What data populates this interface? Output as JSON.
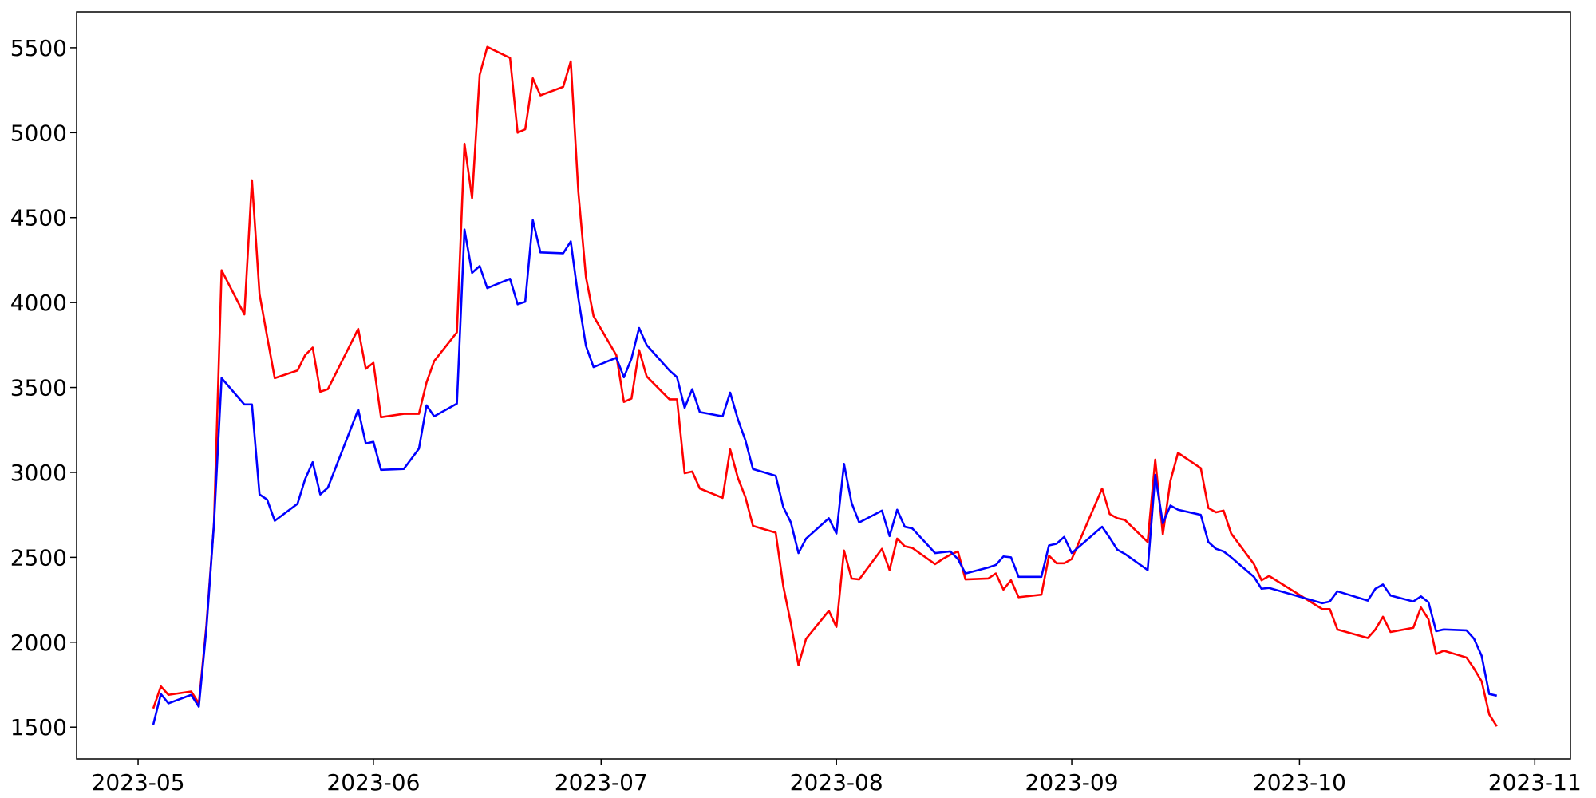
{
  "chart_data": {
    "type": "line",
    "x": [
      19480,
      19481,
      19482,
      19485,
      19486,
      19487,
      19488,
      19489,
      19492,
      19493,
      19494,
      19495,
      19496,
      19499,
      19500,
      19501,
      19502,
      19503,
      19507,
      19508,
      19509,
      19510,
      19513,
      19515,
      19516,
      19517,
      19520,
      19521,
      19522,
      19523,
      19524,
      19527,
      19528,
      19529,
      19530,
      19531,
      19534,
      19535,
      19536,
      19537,
      19538,
      19541,
      19542,
      19543,
      19544,
      19545,
      19548,
      19549,
      19550,
      19551,
      19552,
      19555,
      19556,
      19557,
      19558,
      19559,
      19562,
      19563,
      19564,
      19565,
      19566,
      19569,
      19570,
      19571,
      19572,
      19573,
      19576,
      19577,
      19578,
      19579,
      19580,
      19583,
      19584,
      19585,
      19586,
      19587,
      19590,
      19591,
      19592,
      19593,
      19594,
      19597,
      19598,
      19599,
      19600,
      19601,
      19605,
      19606,
      19607,
      19608,
      19611,
      19612,
      19613,
      19614,
      19615,
      19618,
      19619,
      19620,
      19621,
      19622,
      19625,
      19626,
      19627,
      19634,
      19635,
      19636,
      19640,
      19641,
      19642,
      19643,
      19646,
      19647,
      19648,
      19649,
      19650,
      19653,
      19654,
      19655,
      19656,
      19657
    ],
    "series": [
      {
        "color": "#ff0000",
        "values": [
          1610,
          1740,
          1690,
          1710,
          1640,
          2100,
          2700,
          4190,
          3930,
          4720,
          4050,
          3800,
          3555,
          3600,
          3690,
          3735,
          3475,
          3490,
          3845,
          3610,
          3645,
          3325,
          3345,
          3345,
          3530,
          3655,
          3825,
          4935,
          4615,
          5340,
          5505,
          5440,
          5000,
          5020,
          5320,
          5220,
          5270,
          5420,
          4650,
          4150,
          3920,
          3690,
          3415,
          3435,
          3720,
          3565,
          3430,
          3430,
          2995,
          3005,
          2905,
          2850,
          3135,
          2970,
          2855,
          2685,
          2645,
          2330,
          2110,
          1865,
          2020,
          2185,
          2090,
          2540,
          2375,
          2370,
          2550,
          2425,
          2610,
          2565,
          2555,
          2460,
          2490,
          2515,
          2535,
          2370,
          2375,
          2405,
          2310,
          2365,
          2265,
          2280,
          2510,
          2465,
          2465,
          2490,
          2905,
          2755,
          2730,
          2720,
          2590,
          3075,
          2635,
          2950,
          3115,
          3025,
          2790,
          2765,
          2775,
          2640,
          2460,
          2365,
          2390,
          2195,
          2195,
          2075,
          2025,
          2075,
          2150,
          2060,
          2085,
          2205,
          2135,
          1930,
          1950,
          1910,
          1845,
          1770,
          1575,
          1505
        ]
      },
      {
        "color": "#0000ff",
        "values": [
          1515,
          1695,
          1640,
          1690,
          1620,
          2080,
          2700,
          3555,
          3400,
          3400,
          2870,
          2840,
          2715,
          2815,
          2960,
          3060,
          2870,
          2910,
          3370,
          3170,
          3180,
          3015,
          3020,
          3140,
          3395,
          3330,
          3405,
          4430,
          4175,
          4215,
          4085,
          4140,
          3990,
          4005,
          4485,
          4295,
          4290,
          4360,
          4025,
          3745,
          3620,
          3675,
          3560,
          3670,
          3850,
          3750,
          3600,
          3560,
          3380,
          3490,
          3355,
          3330,
          3470,
          3315,
          3190,
          3020,
          2980,
          2795,
          2705,
          2525,
          2610,
          2730,
          2640,
          3050,
          2820,
          2705,
          2775,
          2625,
          2780,
          2680,
          2670,
          2525,
          2530,
          2535,
          2490,
          2405,
          2440,
          2455,
          2505,
          2500,
          2385,
          2385,
          2570,
          2580,
          2620,
          2525,
          2680,
          2615,
          2545,
          2520,
          2425,
          2985,
          2700,
          2805,
          2780,
          2750,
          2590,
          2550,
          2535,
          2500,
          2385,
          2315,
          2320,
          2230,
          2240,
          2300,
          2245,
          2315,
          2340,
          2275,
          2240,
          2270,
          2235,
          2065,
          2075,
          2070,
          2020,
          1920,
          1695,
          1685
        ]
      }
    ],
    "xlim": [
      19469.9,
      19666.7
    ],
    "xticks": [
      {
        "value": 19478,
        "label": "2023-05"
      },
      {
        "value": 19509,
        "label": "2023-06"
      },
      {
        "value": 19539,
        "label": "2023-07"
      },
      {
        "value": 19570,
        "label": "2023-08"
      },
      {
        "value": 19601,
        "label": "2023-09"
      },
      {
        "value": 19631,
        "label": "2023-10"
      },
      {
        "value": 19662,
        "label": "2023-11"
      }
    ],
    "ylim": [
      1313,
      5711
    ],
    "yticks": [
      1500,
      2000,
      2500,
      3000,
      3500,
      4000,
      4500,
      5000,
      5500
    ]
  }
}
